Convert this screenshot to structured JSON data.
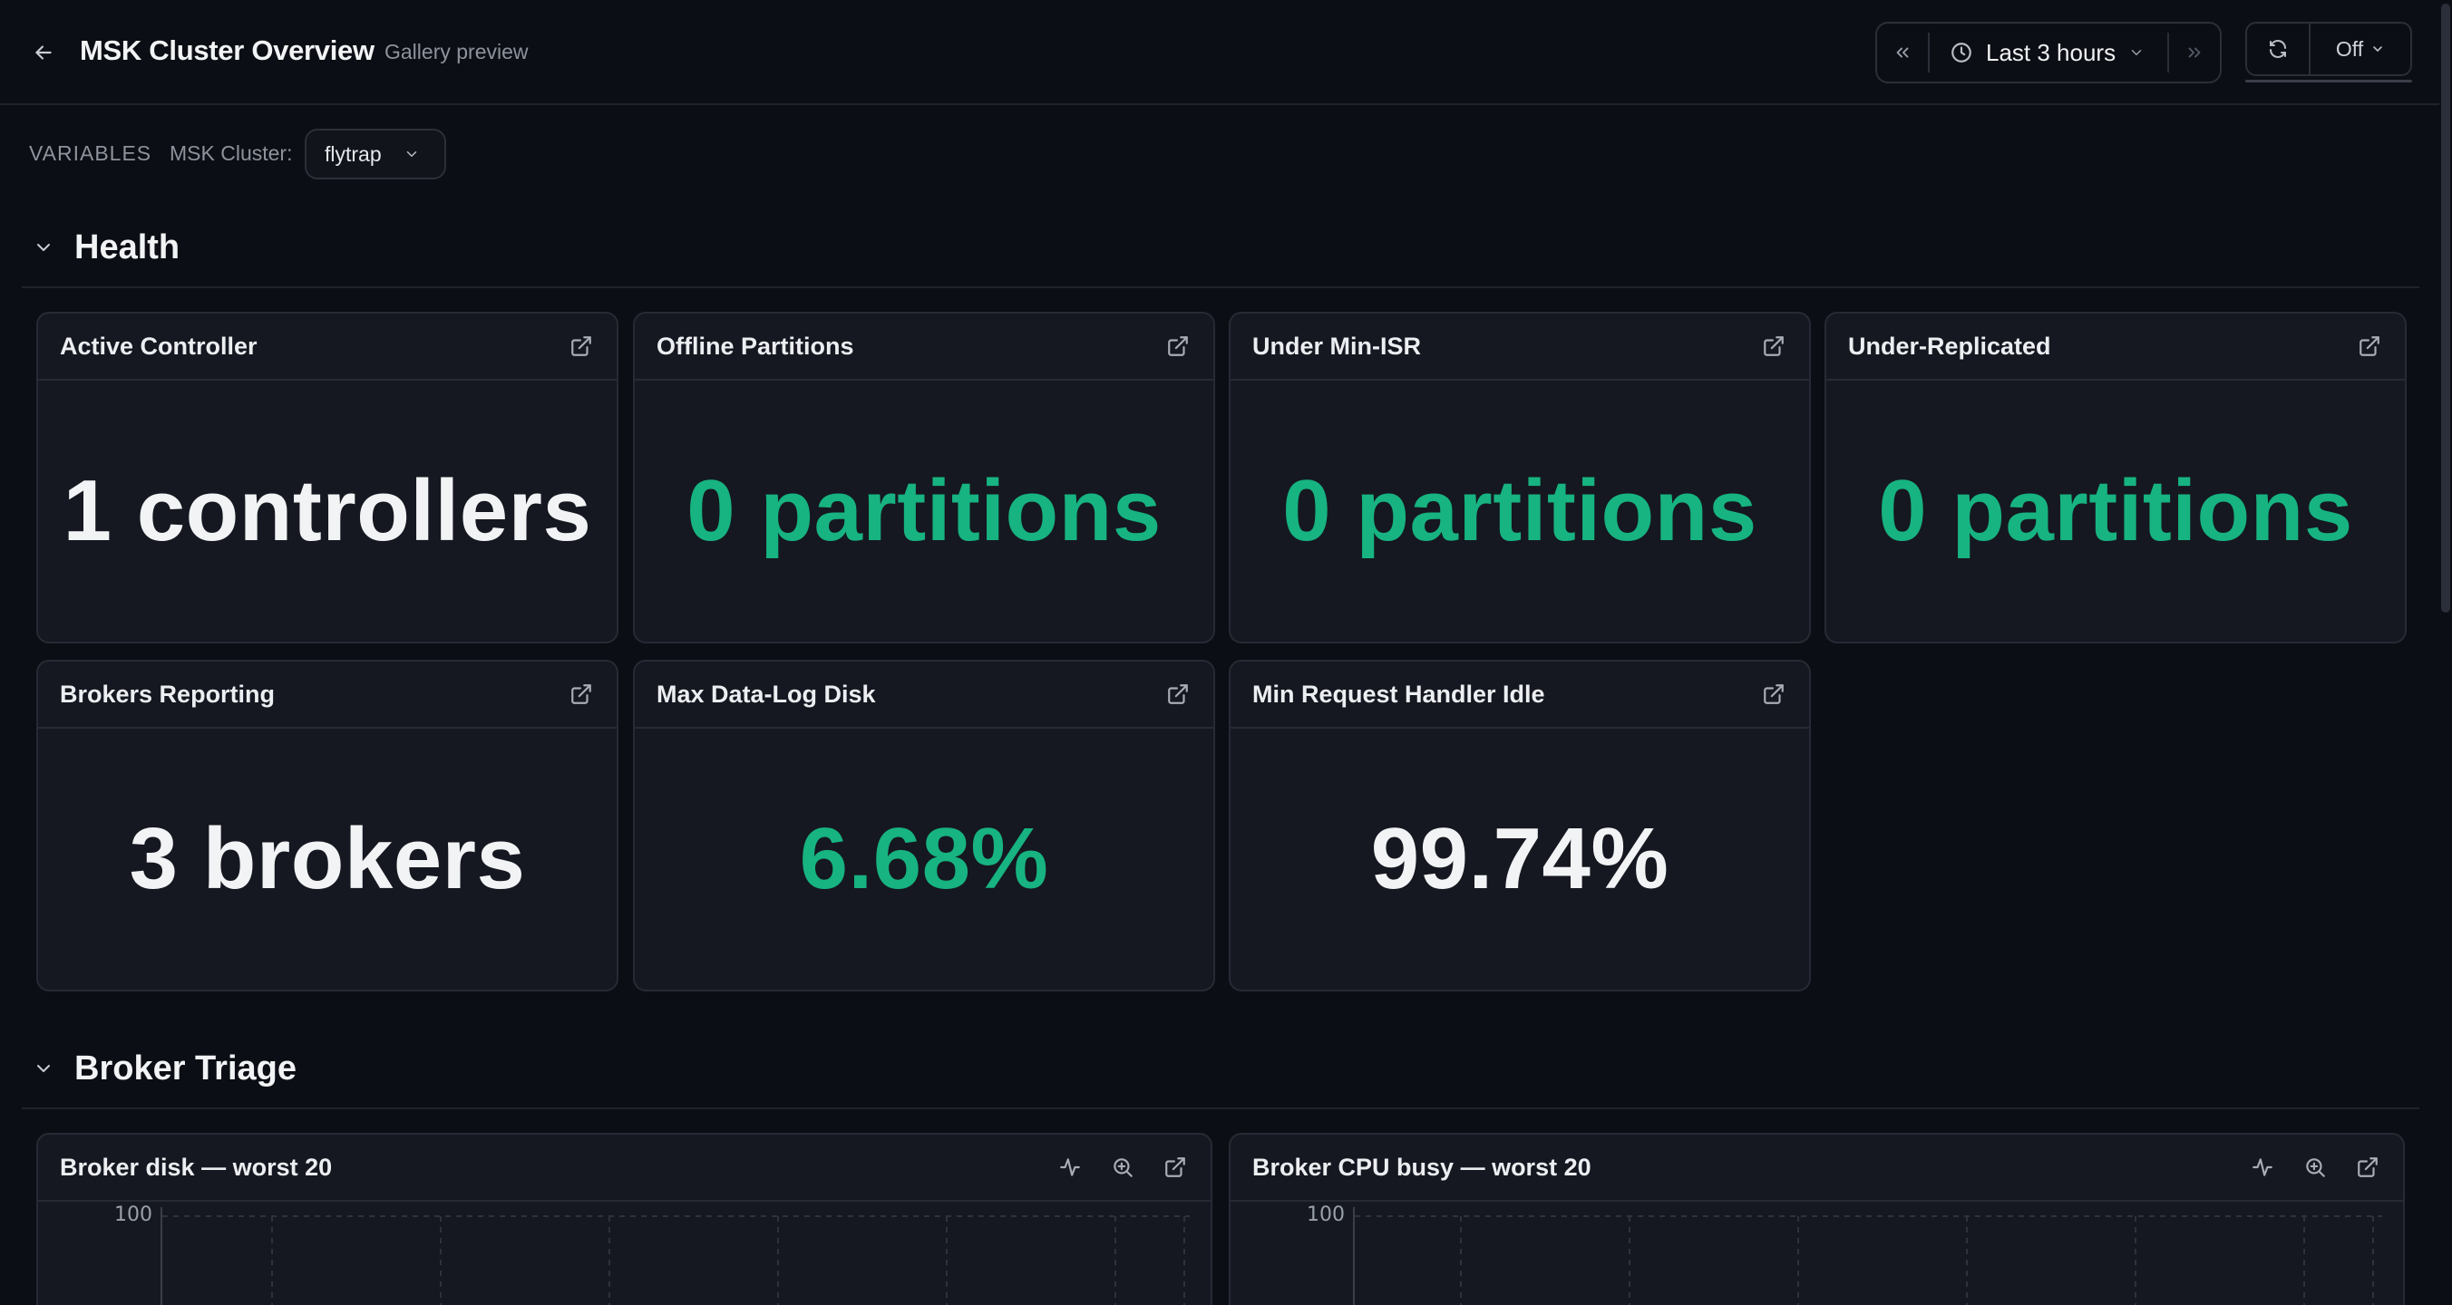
{
  "header": {
    "title": "MSK Cluster Overview",
    "subtitle": "Gallery preview",
    "time_range": "Last 3 hours",
    "refresh_interval": "Off"
  },
  "variables": {
    "label": "VARIABLES",
    "msk_cluster": {
      "name": "MSK Cluster:",
      "value": "flytrap"
    }
  },
  "sections": {
    "health": {
      "title": "Health"
    },
    "broker_triage": {
      "title": "Broker Triage"
    }
  },
  "panels": {
    "active_controller": {
      "title": "Active Controller",
      "value": "1 controllers"
    },
    "offline_partitions": {
      "title": "Offline Partitions",
      "value": "0 partitions"
    },
    "under_min_isr": {
      "title": "Under Min-ISR",
      "value": "0 partitions"
    },
    "under_replicated": {
      "title": "Under-Replicated",
      "value": "0 partitions"
    },
    "brokers_reporting": {
      "title": "Brokers Reporting",
      "value": "3 brokers"
    },
    "max_data_log_disk": {
      "title": "Max Data-Log Disk",
      "value": "6.68%"
    },
    "min_request_handler_idle": {
      "title": "Min Request Handler Idle",
      "value": "99.74%"
    },
    "broker_disk": {
      "title": "Broker disk — worst 20",
      "y_tick": "100"
    },
    "broker_cpu": {
      "title": "Broker CPU busy — worst 20",
      "y_tick": "100"
    }
  },
  "colors": {
    "background": "#0b0e14",
    "panel": "#151820",
    "border": "#262a34",
    "text": "#f2f3f5",
    "muted": "#8d929c",
    "good": "#17b381"
  },
  "icons": {
    "back": "arrow-left-icon",
    "time_back": "chevrons-left-icon",
    "time_forward": "chevrons-right-icon",
    "clock": "clock-icon",
    "refresh": "refresh-icon",
    "chevron": "chevron-down-icon",
    "open": "external-link-icon",
    "explore": "activity-icon",
    "zoom": "zoom-icon"
  }
}
